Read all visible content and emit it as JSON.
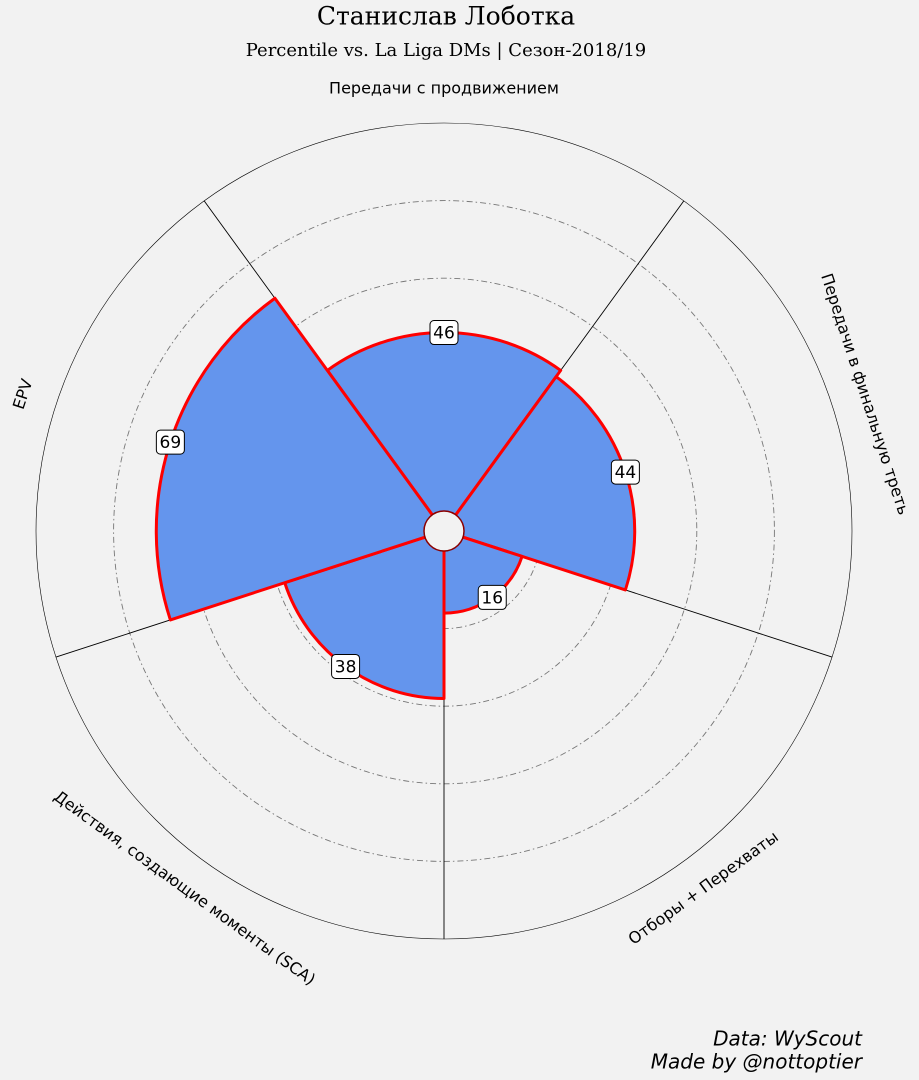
{
  "chart_data": {
    "type": "pizza",
    "title": "Станислав Лоботка",
    "subtitle": "Percentile vs. La Liga DMs | Сезон-2018/19",
    "categories": [
      "Передачи с продвижением",
      "Передачи в финальную треть",
      "Отборы + Перехваты",
      "Действия, создающие моменты (SCA)",
      "EPV"
    ],
    "values": [
      46,
      44,
      16,
      38,
      69
    ],
    "color": "#6495ed",
    "edgecolor": "#ff0000",
    "ylim": [
      0,
      100
    ],
    "yticks": [
      20,
      40,
      60,
      80
    ],
    "grid": true,
    "annotations": [
      "Data: WyScout",
      "Made by @nottoptier"
    ]
  }
}
